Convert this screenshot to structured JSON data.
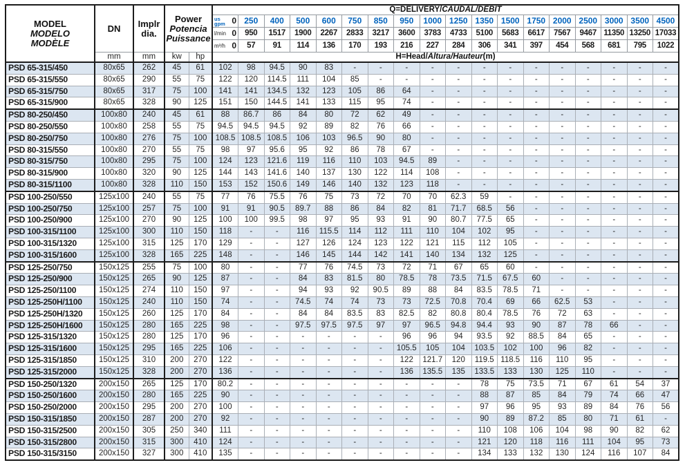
{
  "header": {
    "model": {
      "line1": "MODEL",
      "line2": "MODELO",
      "line3": "MODÈLE"
    },
    "dn_label": "DN",
    "impeller": {
      "line1": "Implr",
      "line2": "dia."
    },
    "power": {
      "line1": "Power",
      "line2": "Potencia",
      "line3": "Puissance"
    },
    "unit_mm_dn": "mm",
    "unit_mm_dia": "mm",
    "unit_kw": "kw",
    "unit_hp": "hp",
    "delivery_title": {
      "prefix": "Q=DELIVERY/",
      "italic": "CAUDAL/DÉBIT"
    },
    "head_title": {
      "prefix": "H=Head/",
      "italic": "Altura/Hauteur",
      "suffix": "(m)"
    },
    "flow": {
      "usgpm": {
        "unit_line1": "us",
        "unit_line2": "gpm",
        "values": [
          "0",
          "250",
          "400",
          "500",
          "600",
          "750",
          "850",
          "950",
          "1000",
          "1250",
          "1350",
          "1500",
          "1750",
          "2000",
          "2500",
          "3000",
          "3500",
          "4500"
        ]
      },
      "lmin": {
        "unit": "l/min",
        "values": [
          "0",
          "950",
          "1517",
          "1900",
          "2267",
          "2833",
          "3217",
          "3600",
          "3783",
          "4733",
          "5100",
          "5683",
          "6617",
          "7567",
          "9467",
          "11350",
          "13250",
          "17033"
        ]
      },
      "m3h": {
        "unit": "m³/h",
        "values": [
          "0",
          "57",
          "91",
          "114",
          "136",
          "170",
          "193",
          "216",
          "227",
          "284",
          "306",
          "341",
          "397",
          "454",
          "568",
          "681",
          "795",
          "1022"
        ]
      }
    }
  },
  "rows": [
    {
      "model": "PSD 65-315/450",
      "dn": "80x65",
      "dia": "262",
      "kw": "45",
      "hp": "61",
      "h": [
        "102",
        "98",
        "94.5",
        "90",
        "83",
        "-",
        "-",
        "-",
        "-",
        "-",
        "-",
        "-",
        "-",
        "-",
        "-",
        "-",
        "-",
        "-"
      ]
    },
    {
      "model": "PSD 65-315/550",
      "dn": "80x65",
      "dia": "290",
      "kw": "55",
      "hp": "75",
      "h": [
        "122",
        "120",
        "114.5",
        "111",
        "104",
        "85",
        "-",
        "-",
        "-",
        "-",
        "-",
        "-",
        "-",
        "-",
        "-",
        "-",
        "-",
        "-"
      ]
    },
    {
      "model": "PSD 65-315/750",
      "dn": "80x65",
      "dia": "317",
      "kw": "75",
      "hp": "100",
      "h": [
        "141",
        "141",
        "134.5",
        "132",
        "123",
        "105",
        "86",
        "64",
        "-",
        "-",
        "-",
        "-",
        "-",
        "-",
        "-",
        "-",
        "-",
        "-"
      ]
    },
    {
      "model": "PSD 65-315/900",
      "dn": "80x65",
      "dia": "328",
      "kw": "90",
      "hp": "125",
      "h": [
        "151",
        "150",
        "144.5",
        "141",
        "133",
        "115",
        "95",
        "74",
        "-",
        "-",
        "-",
        "-",
        "-",
        "-",
        "-",
        "-",
        "-",
        "-"
      ]
    },
    {
      "model": "PSD 80-250/450",
      "dn": "100x80",
      "dia": "240",
      "kw": "45",
      "hp": "61",
      "h": [
        "88",
        "86.7",
        "86",
        "84",
        "80",
        "72",
        "62",
        "49",
        "-",
        "-",
        "-",
        "-",
        "-",
        "-",
        "-",
        "-",
        "-",
        "-"
      ]
    },
    {
      "model": "PSD 80-250/550",
      "dn": "100x80",
      "dia": "258",
      "kw": "55",
      "hp": "75",
      "h": [
        "94.5",
        "94.5",
        "94.5",
        "92",
        "89",
        "82",
        "76",
        "66",
        "-",
        "-",
        "-",
        "-",
        "-",
        "-",
        "-",
        "-",
        "-",
        "-"
      ]
    },
    {
      "model": "PSD 80-250/750",
      "dn": "100x80",
      "dia": "276",
      "kw": "75",
      "hp": "100",
      "h": [
        "108.5",
        "108.5",
        "108.5",
        "106",
        "103",
        "96.5",
        "90",
        "80",
        "-",
        "-",
        "-",
        "-",
        "-",
        "-",
        "-",
        "-",
        "-",
        "-"
      ]
    },
    {
      "model": "PSD 80-315/550",
      "dn": "100x80",
      "dia": "270",
      "kw": "55",
      "hp": "75",
      "h": [
        "98",
        "97",
        "95.6",
        "95",
        "92",
        "86",
        "78",
        "67",
        "-",
        "-",
        "-",
        "-",
        "-",
        "-",
        "-",
        "-",
        "-",
        "-"
      ]
    },
    {
      "model": "PSD 80-315/750",
      "dn": "100x80",
      "dia": "295",
      "kw": "75",
      "hp": "100",
      "h": [
        "124",
        "123",
        "121.6",
        "119",
        "116",
        "110",
        "103",
        "94.5",
        "89",
        "-",
        "-",
        "-",
        "-",
        "-",
        "-",
        "-",
        "-",
        "-"
      ]
    },
    {
      "model": "PSD 80-315/900",
      "dn": "100x80",
      "dia": "320",
      "kw": "90",
      "hp": "125",
      "h": [
        "144",
        "143",
        "141.6",
        "140",
        "137",
        "130",
        "122",
        "114",
        "108",
        "-",
        "-",
        "-",
        "-",
        "-",
        "-",
        "-",
        "-",
        "-"
      ]
    },
    {
      "model": "PSD 80-315/1100",
      "dn": "100x80",
      "dia": "328",
      "kw": "110",
      "hp": "150",
      "h": [
        "153",
        "152",
        "150.6",
        "149",
        "146",
        "140",
        "132",
        "123",
        "118",
        "-",
        "-",
        "-",
        "-",
        "-",
        "-",
        "-",
        "-",
        "-"
      ]
    },
    {
      "model": "PSD 100-250/550",
      "dn": "125x100",
      "dia": "240",
      "kw": "55",
      "hp": "75",
      "h": [
        "77",
        "76",
        "75.5",
        "76",
        "75",
        "73",
        "72",
        "70",
        "70",
        "62.3",
        "59",
        "-",
        "-",
        "-",
        "-",
        "-",
        "-",
        "-"
      ]
    },
    {
      "model": "PSD 100-250/750",
      "dn": "125x100",
      "dia": "257",
      "kw": "75",
      "hp": "100",
      "h": [
        "91",
        "91",
        "90.5",
        "89.7",
        "88",
        "86",
        "84",
        "82",
        "81",
        "71.7",
        "68.5",
        "56",
        "-",
        "-",
        "-",
        "-",
        "-",
        "-"
      ]
    },
    {
      "model": "PSD 100-250/900",
      "dn": "125x100",
      "dia": "270",
      "kw": "90",
      "hp": "125",
      "h": [
        "100",
        "100",
        "99.5",
        "98",
        "97",
        "95",
        "93",
        "91",
        "90",
        "80.7",
        "77.5",
        "65",
        "-",
        "-",
        "-",
        "-",
        "-",
        "-"
      ]
    },
    {
      "model": "PSD 100-315/1100",
      "dn": "125x100",
      "dia": "300",
      "kw": "110",
      "hp": "150",
      "h": [
        "118",
        "-",
        "-",
        "116",
        "115.5",
        "114",
        "112",
        "111",
        "110",
        "104",
        "102",
        "95",
        "-",
        "-",
        "-",
        "-",
        "-",
        "-"
      ]
    },
    {
      "model": "PSD 100-315/1320",
      "dn": "125x100",
      "dia": "315",
      "kw": "125",
      "hp": "170",
      "h": [
        "129",
        "-",
        "-",
        "127",
        "126",
        "124",
        "123",
        "122",
        "121",
        "115",
        "112",
        "105",
        "-",
        "-",
        "-",
        "-",
        "-",
        "-"
      ]
    },
    {
      "model": "PSD 100-315/1600",
      "dn": "125x100",
      "dia": "328",
      "kw": "165",
      "hp": "225",
      "h": [
        "148",
        "-",
        "-",
        "146",
        "145",
        "144",
        "142",
        "141",
        "140",
        "134",
        "132",
        "125",
        "-",
        "-",
        "-",
        "-",
        "-",
        "-"
      ]
    },
    {
      "model": "PSD 125-250/750",
      "dn": "150x125",
      "dia": "255",
      "kw": "75",
      "hp": "100",
      "h": [
        "80",
        "-",
        "-",
        "77",
        "76",
        "74.5",
        "73",
        "72",
        "71",
        "67",
        "65",
        "60",
        "-",
        "-",
        "-",
        "-",
        "-",
        "-"
      ]
    },
    {
      "model": "PSD 125-250/900",
      "dn": "150x125",
      "dia": "265",
      "kw": "90",
      "hp": "125",
      "h": [
        "87",
        "-",
        "-",
        "84",
        "83",
        "81.5",
        "80",
        "78.5",
        "78",
        "73.5",
        "71.5",
        "67.5",
        "60",
        "-",
        "-",
        "-",
        "-",
        "-"
      ]
    },
    {
      "model": "PSD 125-250/1100",
      "dn": "150x125",
      "dia": "274",
      "kw": "110",
      "hp": "150",
      "h": [
        "97",
        "-",
        "-",
        "94",
        "93",
        "92",
        "90.5",
        "89",
        "88",
        "84",
        "83.5",
        "78.5",
        "71",
        "-",
        "-",
        "-",
        "-",
        "-"
      ]
    },
    {
      "model": "PSD 125-250H/1100",
      "dn": "150x125",
      "dia": "240",
      "kw": "110",
      "hp": "150",
      "h": [
        "74",
        "-",
        "-",
        "74.5",
        "74",
        "74",
        "73",
        "73",
        "72.5",
        "70.8",
        "70.4",
        "69",
        "66",
        "62.5",
        "53",
        "-",
        "-",
        "-"
      ]
    },
    {
      "model": "PSD 125-250H/1320",
      "dn": "150x125",
      "dia": "260",
      "kw": "125",
      "hp": "170",
      "h": [
        "84",
        "-",
        "-",
        "84",
        "84",
        "83.5",
        "83",
        "82.5",
        "82",
        "80.8",
        "80.4",
        "78.5",
        "76",
        "72",
        "63",
        "-",
        "-",
        "-"
      ]
    },
    {
      "model": "PSD 125-250H/1600",
      "dn": "150x125",
      "dia": "280",
      "kw": "165",
      "hp": "225",
      "h": [
        "98",
        "-",
        "-",
        "97.5",
        "97.5",
        "97.5",
        "97",
        "97",
        "96.5",
        "94.8",
        "94.4",
        "93",
        "90",
        "87",
        "78",
        "66",
        "-",
        "-"
      ]
    },
    {
      "model": "PSD 125-315/1320",
      "dn": "150x125",
      "dia": "280",
      "kw": "125",
      "hp": "170",
      "h": [
        "96",
        "-",
        "-",
        "-",
        "-",
        "-",
        "-",
        "96",
        "96",
        "94",
        "93.5",
        "92",
        "88.5",
        "84",
        "65",
        "-",
        "-",
        "-"
      ]
    },
    {
      "model": "PSD 125-315/1600",
      "dn": "150x125",
      "dia": "295",
      "kw": "165",
      "hp": "225",
      "h": [
        "106",
        "-",
        "-",
        "-",
        "-",
        "-",
        "-",
        "105.5",
        "105",
        "104",
        "103.5",
        "102",
        "100",
        "96",
        "82",
        "-",
        "-",
        "-"
      ]
    },
    {
      "model": "PSD 125-315/1850",
      "dn": "150x125",
      "dia": "310",
      "kw": "200",
      "hp": "270",
      "h": [
        "122",
        "-",
        "-",
        "-",
        "-",
        "-",
        "-",
        "122",
        "121.7",
        "120",
        "119.5",
        "118.5",
        "116",
        "110",
        "95",
        "-",
        "-",
        "-"
      ]
    },
    {
      "model": "PSD 125-315/2000",
      "dn": "150x125",
      "dia": "328",
      "kw": "200",
      "hp": "270",
      "h": [
        "136",
        "-",
        "-",
        "-",
        "-",
        "-",
        "-",
        "136",
        "135.5",
        "135",
        "133.5",
        "133",
        "130",
        "125",
        "110",
        "-",
        "-",
        "-"
      ]
    },
    {
      "model": "PSD 150-250/1320",
      "dn": "200x150",
      "dia": "265",
      "kw": "125",
      "hp": "170",
      "h": [
        "80.2",
        "-",
        "-",
        "-",
        "-",
        "-",
        "-",
        "-",
        "-",
        "-",
        "78",
        "75",
        "73.5",
        "71",
        "67",
        "61",
        "54",
        "37"
      ]
    },
    {
      "model": "PSD 150-250/1600",
      "dn": "200x150",
      "dia": "280",
      "kw": "165",
      "hp": "225",
      "h": [
        "90",
        "-",
        "-",
        "-",
        "-",
        "-",
        "-",
        "-",
        "-",
        "-",
        "88",
        "87",
        "85",
        "84",
        "79",
        "74",
        "66",
        "47"
      ]
    },
    {
      "model": "PSD 150-250/2000",
      "dn": "200x150",
      "dia": "295",
      "kw": "200",
      "hp": "270",
      "h": [
        "100",
        "-",
        "-",
        "-",
        "-",
        "-",
        "-",
        "-",
        "-",
        "-",
        "97",
        "96",
        "95",
        "93",
        "89",
        "84",
        "76",
        "56"
      ]
    },
    {
      "model": "PSD 150-315/1850",
      "dn": "200x150",
      "dia": "287",
      "kw": "200",
      "hp": "270",
      "h": [
        "92",
        "-",
        "-",
        "-",
        "-",
        "-",
        "-",
        "-",
        "-",
        "-",
        "90",
        "89",
        "87.2",
        "85",
        "80",
        "71",
        "61",
        "-"
      ]
    },
    {
      "model": "PSD 150-315/2500",
      "dn": "200x150",
      "dia": "305",
      "kw": "250",
      "hp": "340",
      "h": [
        "111",
        "-",
        "-",
        "-",
        "-",
        "-",
        "-",
        "-",
        "-",
        "-",
        "110",
        "108",
        "106",
        "104",
        "98",
        "90",
        "82",
        "62"
      ]
    },
    {
      "model": "PSD 150-315/2800",
      "dn": "200x150",
      "dia": "315",
      "kw": "300",
      "hp": "410",
      "h": [
        "124",
        "-",
        "-",
        "-",
        "-",
        "-",
        "-",
        "-",
        "-",
        "-",
        "121",
        "120",
        "118",
        "116",
        "111",
        "104",
        "95",
        "73"
      ]
    },
    {
      "model": "PSD 150-315/3150",
      "dn": "200x150",
      "dia": "327",
      "kw": "300",
      "hp": "410",
      "h": [
        "135",
        "-",
        "-",
        "-",
        "-",
        "-",
        "-",
        "-",
        "-",
        "-",
        "134",
        "133",
        "132",
        "130",
        "124",
        "116",
        "107",
        "84"
      ]
    }
  ],
  "colors": {
    "accent_blue": "#0063bd",
    "row_shade": "#dce6f1",
    "border_dark": "#1c1c1c"
  }
}
